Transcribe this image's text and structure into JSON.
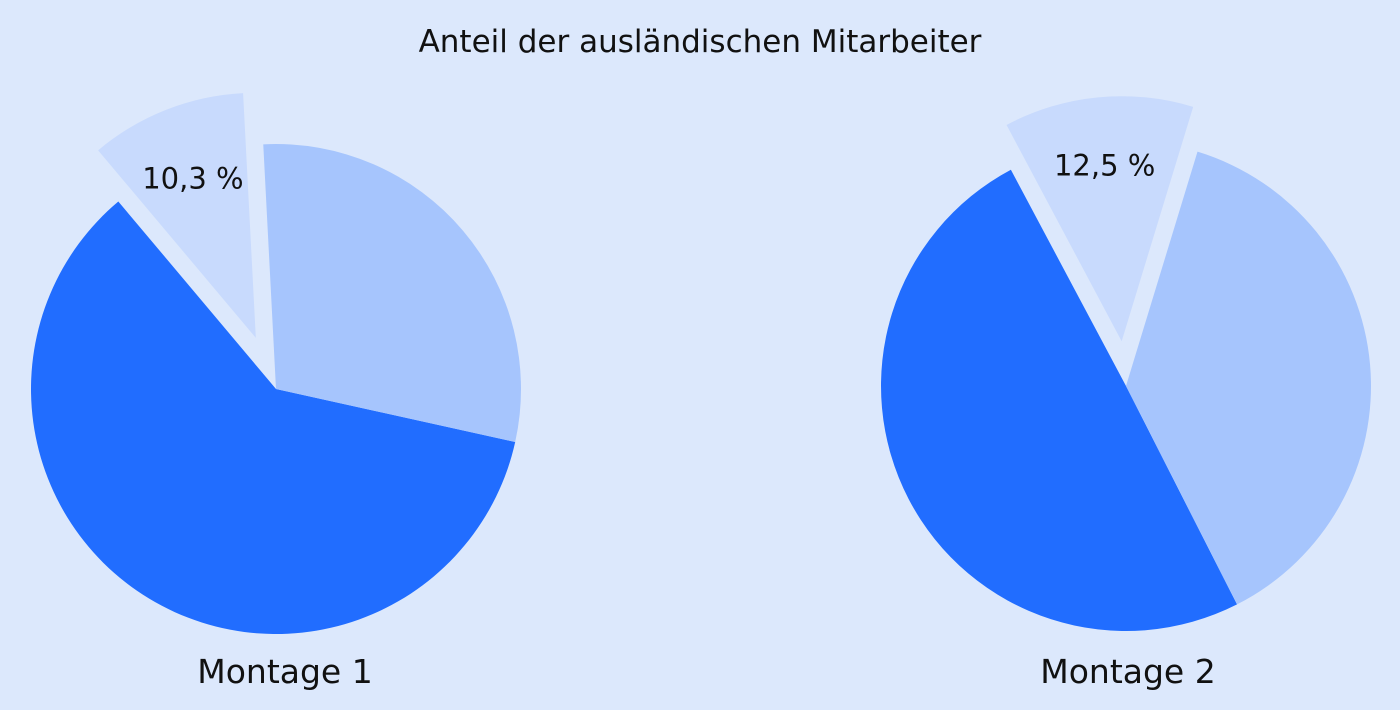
{
  "chart_data": {
    "type": "pie",
    "title": "Anteil der ausländischen Mitarbeiter",
    "colors": [
      "#216dff",
      "#a6c5fd",
      "#c8dafd"
    ],
    "background": "#dce8fc",
    "pies": [
      {
        "name": "Montage 1",
        "slices": [
          {
            "value": 60.4,
            "color": "#216dff",
            "exploded": false,
            "label": ""
          },
          {
            "value": 29.3,
            "color": "#a6c5fd",
            "exploded": false,
            "label": ""
          },
          {
            "value": 10.3,
            "color": "#c8dafd",
            "exploded": true,
            "label": "10,3 %"
          }
        ]
      },
      {
        "name": "Montage 2",
        "slices": [
          {
            "value": 49.7,
            "color": "#216dff",
            "exploded": false,
            "label": ""
          },
          {
            "value": 37.8,
            "color": "#a6c5fd",
            "exploded": false,
            "label": ""
          },
          {
            "value": 12.5,
            "color": "#c8dafd",
            "exploded": true,
            "label": "12,5 %"
          }
        ]
      }
    ]
  }
}
